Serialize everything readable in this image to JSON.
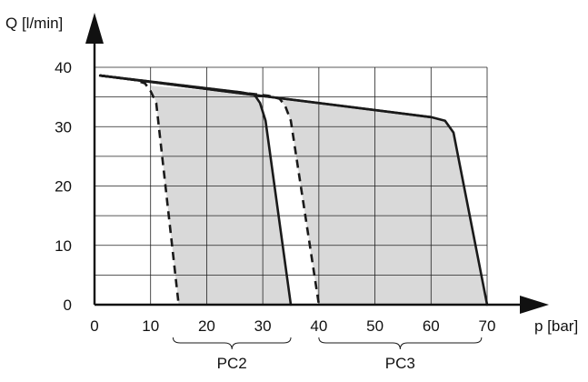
{
  "chart_data": {
    "type": "line",
    "xlabel": "p [bar]",
    "ylabel": "Q [l/min]",
    "xlim": [
      0,
      70
    ],
    "ylim": [
      0,
      40
    ],
    "x_ticks": [
      "0",
      "10",
      "20",
      "30",
      "40",
      "50",
      "60",
      "70"
    ],
    "y_ticks": [
      "0",
      "10",
      "20",
      "30",
      "40"
    ],
    "grid": "on",
    "colors": {
      "shading": "#d9d9d9",
      "line": "#1a1a1a"
    },
    "flow_line": {
      "style": "solid",
      "points": [
        [
          1,
          38.6
        ],
        [
          60,
          31.6
        ]
      ]
    },
    "series": [
      {
        "style": "dashed",
        "points": [
          [
            1,
            38.6
          ],
          [
            7,
            37.9
          ],
          [
            9,
            37.3
          ],
          [
            10,
            36
          ],
          [
            11,
            34
          ],
          [
            15,
            0
          ]
        ]
      },
      {
        "style": "solid",
        "points": [
          [
            1,
            38.6
          ],
          [
            26,
            35.8
          ],
          [
            28.5,
            35.4
          ],
          [
            29.5,
            34
          ],
          [
            30.5,
            31
          ],
          [
            35,
            0
          ]
        ]
      },
      {
        "style": "dashed",
        "points": [
          [
            1,
            38.6
          ],
          [
            31,
            35.2
          ],
          [
            33,
            34.7
          ],
          [
            34,
            33.5
          ],
          [
            35,
            31
          ],
          [
            40,
            0
          ]
        ]
      },
      {
        "style": "solid",
        "points": [
          [
            1,
            38.6
          ],
          [
            60,
            31.6
          ],
          [
            62.5,
            31
          ],
          [
            64,
            29
          ],
          [
            70,
            0
          ]
        ]
      }
    ],
    "shaded_regions": [
      {
        "points": [
          [
            10,
            36.9
          ],
          [
            28.5,
            35.4
          ],
          [
            29.5,
            34
          ],
          [
            30.5,
            31
          ],
          [
            35,
            0
          ],
          [
            15,
            0
          ],
          [
            11,
            34
          ]
        ]
      },
      {
        "points": [
          [
            33,
            34.7
          ],
          [
            60,
            31.6
          ],
          [
            62.5,
            31
          ],
          [
            64,
            29
          ],
          [
            70,
            0
          ],
          [
            40,
            0
          ],
          [
            35,
            31
          ],
          [
            34,
            33.5
          ]
        ]
      }
    ],
    "ranges": [
      {
        "label": "PC2",
        "from": 14,
        "to": 35
      },
      {
        "label": "PC3",
        "from": 40,
        "to": 69
      }
    ]
  }
}
